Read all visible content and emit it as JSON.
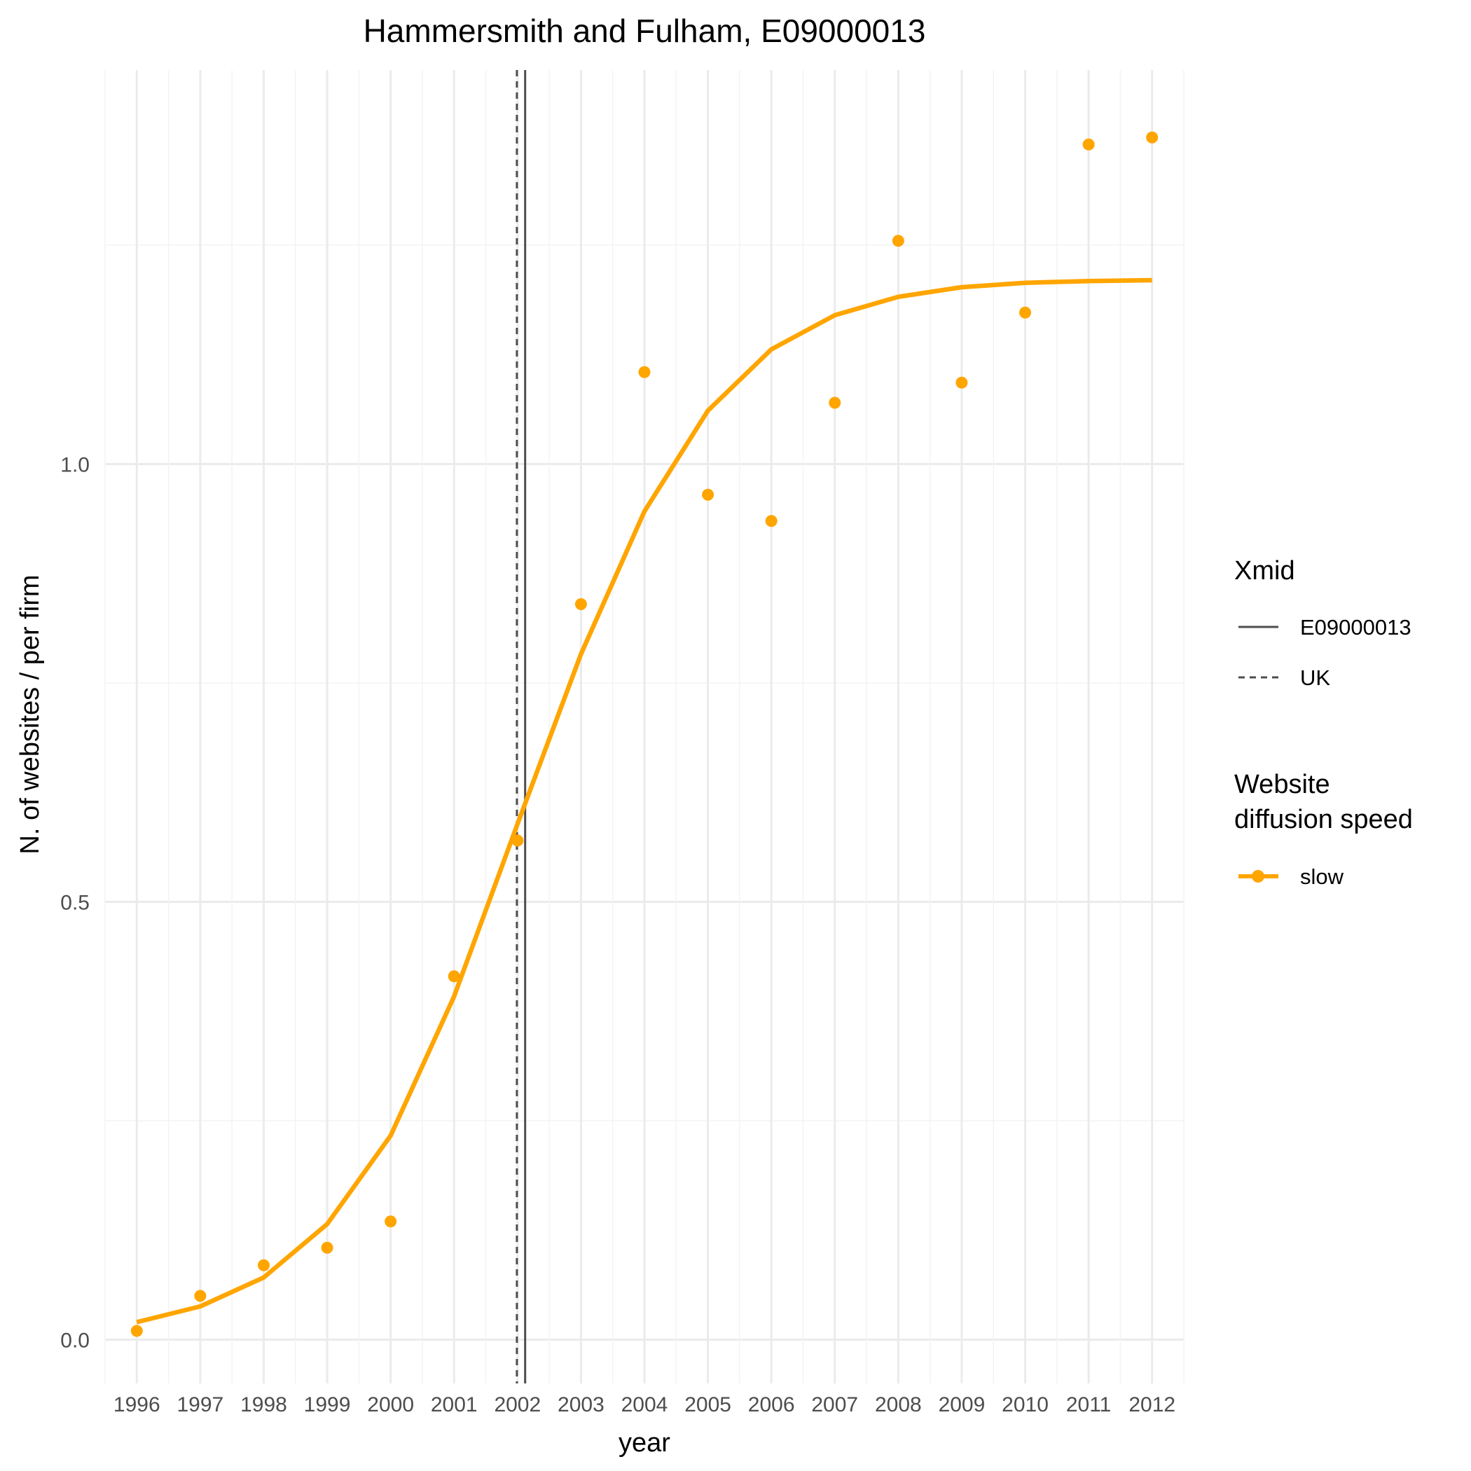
{
  "chart_data": {
    "type": "line",
    "title": "Hammersmith and Fulham, E09000013",
    "xlabel": "year",
    "ylabel": "N. of websites / per firm",
    "x": [
      1996,
      1997,
      1998,
      1999,
      2000,
      2001,
      2002,
      2003,
      2004,
      2005,
      2006,
      2007,
      2008,
      2009,
      2010,
      2011,
      2012
    ],
    "xlim": [
      1995.5,
      2012.5
    ],
    "ylim": [
      -0.05,
      1.45
    ],
    "yticks": [
      0.0,
      0.5,
      1.0
    ],
    "ytick_labels": [
      "0.0",
      "0.5",
      "1.0"
    ],
    "grid": true,
    "series": [
      {
        "name": "slow",
        "kind": "points",
        "color": "#FFA500",
        "values": [
          0.01,
          0.05,
          0.085,
          0.105,
          0.135,
          0.415,
          0.57,
          0.84,
          1.105,
          0.965,
          0.935,
          1.07,
          1.255,
          1.093,
          1.173,
          1.365,
          1.373
        ]
      },
      {
        "name": "slow",
        "kind": "fitted-line",
        "color": "#FFA500",
        "values": [
          0.02,
          0.038,
          0.071,
          0.132,
          0.233,
          0.392,
          0.589,
          0.783,
          0.946,
          1.061,
          1.131,
          1.17,
          1.191,
          1.202,
          1.207,
          1.209,
          1.21
        ]
      }
    ],
    "vlines": [
      {
        "name": "E09000013",
        "x": 2002.12,
        "style": "solid",
        "color": "#4d4d4d"
      },
      {
        "name": "UK",
        "x": 2001.99,
        "style": "dashed",
        "color": "#4d4d4d"
      }
    ],
    "legend": {
      "position": "right",
      "groups": [
        {
          "title": "Xmid",
          "entries": [
            "E09000013",
            "UK"
          ]
        },
        {
          "title_lines": [
            "Website",
            "diffusion speed"
          ],
          "entries": [
            "slow"
          ]
        }
      ]
    }
  }
}
